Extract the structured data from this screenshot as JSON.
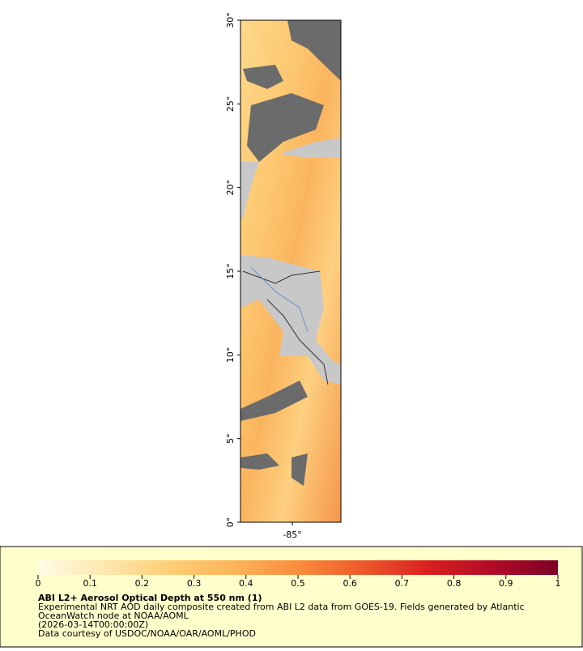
{
  "map": {
    "xlim": [
      -88.1,
      -82.1
    ],
    "ylim": [
      0,
      30
    ],
    "xticks": [
      {
        "value": -85,
        "label": "-85°"
      }
    ],
    "yticks": [
      {
        "value": 0,
        "label": "0°"
      },
      {
        "value": 5,
        "label": "5°"
      },
      {
        "value": 10,
        "label": "10°"
      },
      {
        "value": 15,
        "label": "15°"
      },
      {
        "value": 20,
        "label": "20°"
      },
      {
        "value": 25,
        "label": "25°"
      },
      {
        "value": 30,
        "label": "30°"
      }
    ]
  },
  "legend": {
    "title": "ABI L2+ Aerosol Optical Depth at 550 nm (1)",
    "lines": [
      "Experimental NRT AOD daily composite created from ABI L2 data from GOES-19. Fields generated by Atlantic",
      "OceanWatch node at NOAA/AOML",
      "(2026-03-14T00:00:00Z)",
      "Data courtesy of USDOC/NOAA/OAR/AOML/PHOD"
    ],
    "colorbar": {
      "lim": [
        0,
        1
      ],
      "ticks": [
        0,
        0.1,
        0.2,
        0.3,
        0.4,
        0.5,
        0.6,
        0.7,
        0.8,
        0.9,
        1
      ],
      "colors": [
        "#fffbe6",
        "#fee8b0",
        "#fdcf78",
        "#fcb45a",
        "#f98c3c",
        "#ec5a2c",
        "#d8201f",
        "#b00c28",
        "#7c0026"
      ]
    }
  }
}
